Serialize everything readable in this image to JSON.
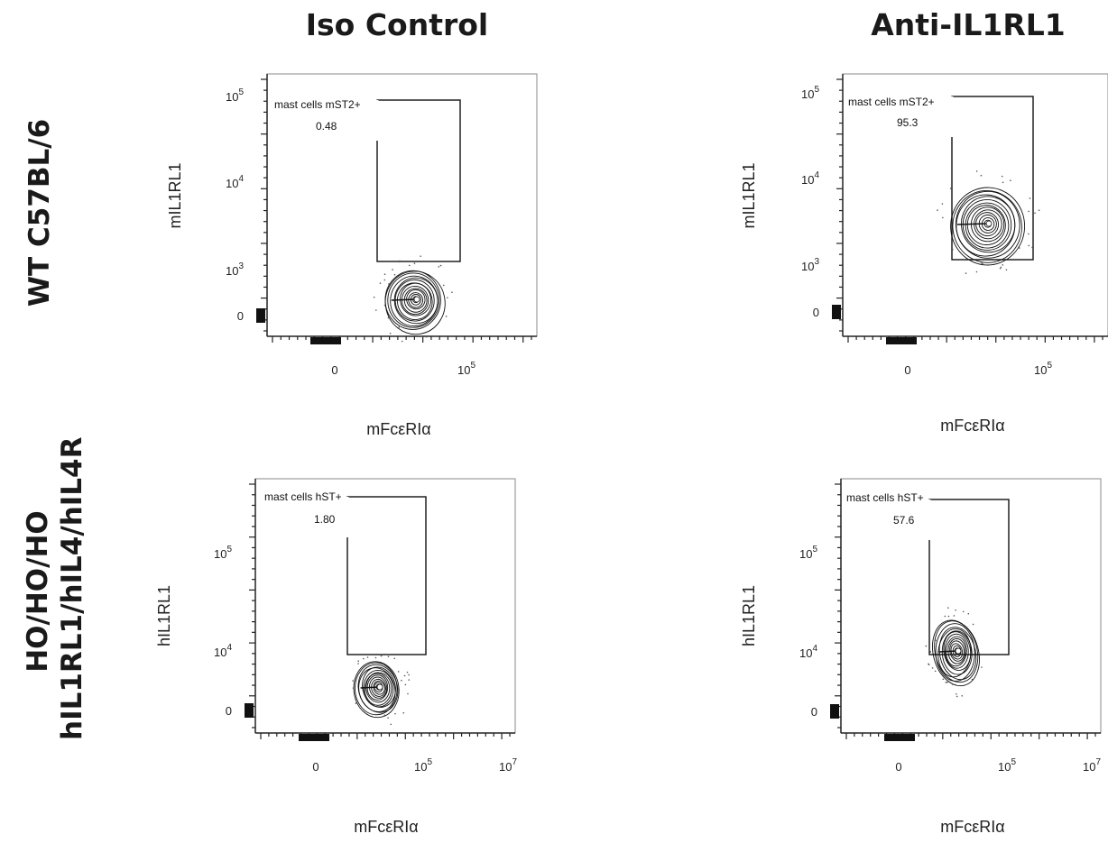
{
  "headers": {
    "columns": [
      "Iso Control",
      "Anti-IL1RL1"
    ],
    "rows": [
      [
        "WT C57BL/6"
      ],
      [
        "HO/HO/HO",
        "hIL1RL1/hIL4/hIL4R"
      ]
    ]
  },
  "chart_data": [
    {
      "type": "contour",
      "panel": "WT C57BL/6 / Iso Control",
      "xlabel": "mFcεRIα",
      "ylabel": "mIL1RL1",
      "x_ticks": [
        "0",
        "10^5"
      ],
      "y_ticks": [
        "0",
        "10^3",
        "10^4",
        "10^5"
      ],
      "gate": {
        "label": "mast cells mST2+",
        "value": "0.48",
        "percent": 0.48
      },
      "population": {
        "x_center_log": 4.7,
        "y_center_log": 2.7,
        "inside_gate": false
      }
    },
    {
      "type": "contour",
      "panel": "WT C57BL/6 / Anti-IL1RL1",
      "xlabel": "mFcεRIα",
      "ylabel": "mIL1RL1",
      "x_ticks": [
        "0",
        "10^5"
      ],
      "y_ticks": [
        "0",
        "10^3",
        "10^4",
        "10^5"
      ],
      "gate": {
        "label": "mast cells mST2+",
        "value": "95.3",
        "percent": 95.3
      },
      "population": {
        "x_center_log": 4.7,
        "y_center_log": 3.5,
        "inside_gate": true
      }
    },
    {
      "type": "contour",
      "panel": "HO/HO/HO hIL1RL1/hIL4/hIL4R / Iso Control",
      "xlabel": "mFcεRIα",
      "ylabel": "hIL1RL1",
      "x_ticks": [
        "0",
        "10^5",
        "10^7"
      ],
      "y_ticks": [
        "0",
        "10^4",
        "10^5"
      ],
      "gate": {
        "label": "mast cells hST+",
        "value": "1.80",
        "percent": 1.8
      },
      "population": {
        "x_center_log": 4.4,
        "y_center_log": 3.7,
        "inside_gate": false
      }
    },
    {
      "type": "contour",
      "panel": "HO/HO/HO hIL1RL1/hIL4/hIL4R / Anti-IL1RL1",
      "xlabel": "mFcεRIα",
      "ylabel": "hIL1RL1",
      "x_ticks": [
        "0",
        "10^5",
        "10^7"
      ],
      "y_ticks": [
        "0",
        "10^4",
        "10^5"
      ],
      "gate": {
        "label": "mast cells hST+",
        "value": "57.6",
        "percent": 57.6
      },
      "population": {
        "x_center_log": 4.4,
        "y_center_log": 4.0,
        "inside_gate": true
      }
    }
  ]
}
